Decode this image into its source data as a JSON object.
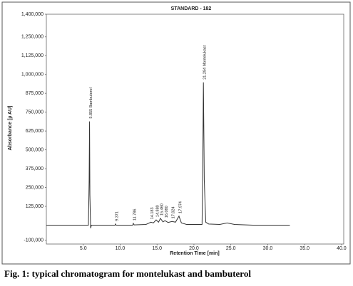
{
  "chart_data": {
    "type": "line",
    "title": "STANDARD - 182",
    "x_label": "Retention Time [min]",
    "y_label": "Absorbance [µ AU]",
    "caption": "Fig. 1: typical chromatogram for montelukast and bambuterol",
    "x": [
      0,
      5.7,
      5.8,
      5.855,
      5.9,
      6.0,
      6.1,
      9.3,
      9.371,
      9.45,
      11.7,
      11.786,
      11.9,
      13.5,
      14.183,
      14.5,
      14.88,
      15.2,
      15.46,
      15.8,
      16.08,
      16.5,
      17.024,
      17.5,
      17.974,
      18.3,
      19,
      21.1,
      21.2,
      21.284,
      21.4,
      21.6,
      22,
      23.5,
      24.5,
      25.5,
      28,
      33
    ],
    "series": [
      {
        "color": "#333333",
        "values": [
          0,
          0,
          300000,
          689000,
          200000,
          -20000,
          0,
          0,
          8000,
          0,
          0,
          12000,
          2000,
          5000,
          20000,
          15000,
          35000,
          20000,
          45000,
          22000,
          30000,
          18000,
          25000,
          20000,
          60000,
          15000,
          5000,
          5000,
          400000,
          948000,
          300000,
          20000,
          8000,
          5000,
          15000,
          5000,
          0,
          0
        ]
      }
    ],
    "annotations": [
      {
        "label": "5.855 Bambuterol",
        "x": 5.855,
        "y": 689000
      },
      {
        "label": "9.371",
        "x": 9.371,
        "y": 8000
      },
      {
        "label": "11.786",
        "x": 11.786,
        "y": 12000
      },
      {
        "label": "14.183",
        "x": 14.183,
        "y": 20000
      },
      {
        "label": "14.880",
        "x": 14.88,
        "y": 35000
      },
      {
        "label": "15.460",
        "x": 15.46,
        "y": 45000
      },
      {
        "label": "16.080",
        "x": 16.08,
        "y": 30000
      },
      {
        "label": "17.024",
        "x": 17.024,
        "y": 25000
      },
      {
        "label": "17.974",
        "x": 17.974,
        "y": 60000
      },
      {
        "label": "21.284 Montelukast",
        "x": 21.284,
        "y": 948000
      }
    ],
    "xlim": [
      0,
      40.3
    ],
    "ylim": [
      -125000,
      1400000
    ],
    "xticks": [
      {
        "value": 5,
        "label": "5.0"
      },
      {
        "value": 10,
        "label": "10.0"
      },
      {
        "value": 15,
        "label": "15.0"
      },
      {
        "value": 20,
        "label": "20.0"
      },
      {
        "value": 25,
        "label": "25.0"
      },
      {
        "value": 30,
        "label": "30.0"
      },
      {
        "value": 35,
        "label": "35.0"
      },
      {
        "value": 40,
        "label": "40.0"
      }
    ],
    "yticks": [
      {
        "value": -100000,
        "label": "-100,000"
      },
      {
        "value": 125000,
        "label": "125,000"
      },
      {
        "value": 250000,
        "label": "250,000"
      },
      {
        "value": 375000,
        "label": "375,000"
      },
      {
        "value": 500000,
        "label": "500,000"
      },
      {
        "value": 625000,
        "label": "625,000"
      },
      {
        "value": 750000,
        "label": "750,000"
      },
      {
        "value": 875000,
        "label": "875,000"
      },
      {
        "value": 1000000,
        "label": "1,000,000"
      },
      {
        "value": 1125000,
        "label": "1,125,000"
      },
      {
        "value": 1250000,
        "label": "1,250,000"
      },
      {
        "value": 1400000,
        "label": "1,400,000"
      }
    ],
    "grid": false
  }
}
